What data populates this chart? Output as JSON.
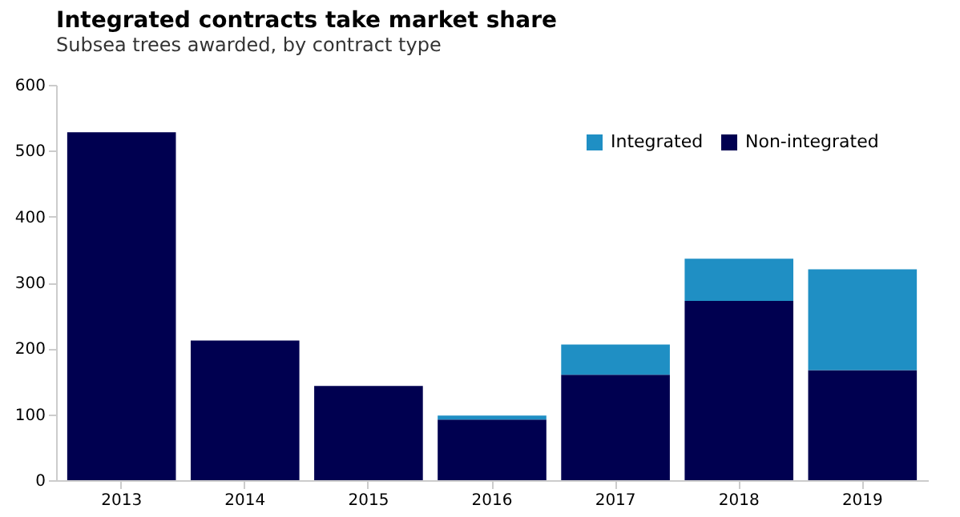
{
  "chart_data": {
    "type": "bar",
    "title": "Integrated contracts take market share",
    "subtitle": "Subsea trees awarded, by contract type",
    "categories": [
      "2013",
      "2014",
      "2015",
      "2016",
      "2017",
      "2018",
      "2019"
    ],
    "series": [
      {
        "name": "Non-integrated",
        "color": "#000050",
        "values": [
          528,
          212,
          143,
          92,
          160,
          272,
          167
        ]
      },
      {
        "name": "Integrated",
        "color": "#1f8fc4",
        "values": [
          0,
          0,
          0,
          6,
          46,
          64,
          153
        ]
      }
    ],
    "stacked": true,
    "ylim": [
      0,
      600
    ],
    "yticks": [
      0,
      100,
      200,
      300,
      400,
      500,
      600
    ],
    "grid": false,
    "legend": "top right"
  }
}
